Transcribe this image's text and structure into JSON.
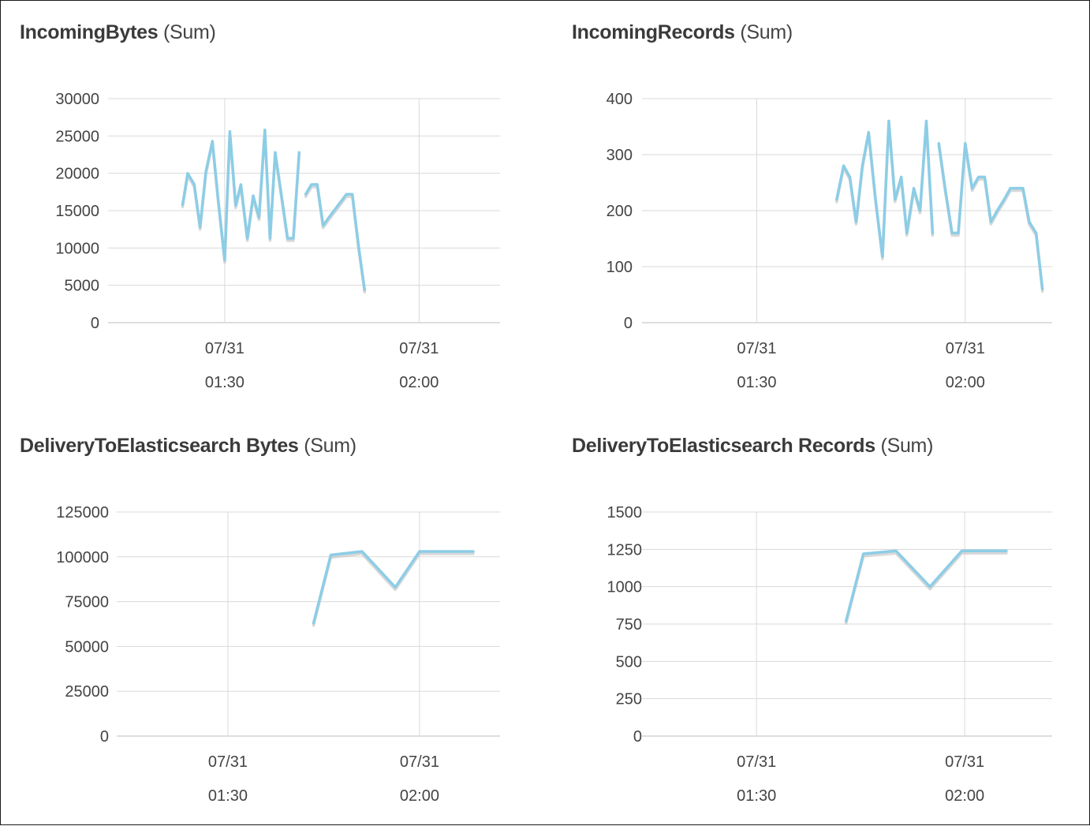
{
  "palette": {
    "line": "#8ccde6",
    "shadow": "#c8c8c8",
    "grid": "#d9d9d9",
    "text": "#444444"
  },
  "chart_data": [
    {
      "type": "line",
      "title": "IncomingBytes",
      "stat": "(Sum)",
      "ylim": [
        0,
        30000
      ],
      "yticks": [
        "0",
        "5000",
        "10000",
        "15000",
        "20000",
        "25000",
        "30000"
      ],
      "xticks": [
        {
          "at": 90,
          "date": "07/31",
          "time": "01:30"
        },
        {
          "at": 120,
          "date": "07/31",
          "time": "02:00"
        }
      ],
      "xlim": [
        72,
        132.5
      ],
      "series": [
        {
          "x": [
            83.5,
            84.3,
            85.3,
            86.2,
            87.1,
            88.1,
            89.0,
            90.0,
            90.8,
            91.7,
            92.5,
            93.5,
            94.4,
            95.3,
            96.2,
            97.0,
            97.8,
            98.8,
            99.7,
            100.6,
            101.5
          ],
          "y": [
            15800,
            20000,
            18500,
            12800,
            20200,
            24300,
            16400,
            8400,
            25600,
            15700,
            18500,
            11300,
            17000,
            14100,
            25800,
            11300,
            22800,
            16800,
            11300,
            11300,
            22800
          ]
        },
        {
          "x": [
            102.5,
            103.4,
            104.3,
            105.2,
            106.1,
            108.8,
            109.7,
            110.7,
            111.6
          ],
          "y": [
            17200,
            18500,
            18500,
            13000,
            14100,
            17200,
            17200,
            10000,
            4400
          ]
        }
      ]
    },
    {
      "type": "line",
      "title": "IncomingRecords",
      "stat": "(Sum)",
      "ylim": [
        0,
        400
      ],
      "yticks": [
        "0",
        "100",
        "200",
        "300",
        "400"
      ],
      "xticks": [
        {
          "at": 90,
          "date": "07/31",
          "time": "01:30"
        },
        {
          "at": 120,
          "date": "07/31",
          "time": "02:00"
        }
      ],
      "xlim": [
        73.5,
        132.5
      ],
      "series": [
        {
          "x": [
            101.5,
            102.5,
            103.4,
            104.3,
            105.2,
            106.1,
            107.1,
            108.1,
            109.0,
            109.9,
            110.8,
            111.6,
            112.6,
            113.5,
            114.4,
            115.3
          ],
          "y": [
            220,
            280,
            260,
            180,
            280,
            340,
            220,
            118,
            360,
            220,
            260,
            160,
            240,
            200,
            360,
            160
          ]
        },
        {
          "x": [
            116.2,
            117.1,
            118.1,
            119.0,
            120.0,
            121.0,
            121.9,
            122.8,
            123.7,
            124.6,
            125.6,
            126.5,
            128.3,
            129.2,
            130.2,
            131.1
          ],
          "y": [
            320,
            240,
            160,
            160,
            320,
            240,
            260,
            260,
            180,
            200,
            220,
            240,
            240,
            180,
            160,
            60
          ]
        }
      ]
    },
    {
      "type": "line",
      "title": "DeliveryToElasticsearch Bytes",
      "stat": "(Sum)",
      "ylim": [
        0,
        125000
      ],
      "yticks": [
        "0",
        "25000",
        "50000",
        "75000",
        "100000",
        "125000"
      ],
      "xticks": [
        {
          "at": 90,
          "date": "07/31",
          "time": "01:30"
        },
        {
          "at": 120,
          "date": "07/31",
          "time": "02:00"
        }
      ],
      "xlim": [
        72.6,
        132.6
      ],
      "series": [
        {
          "x": [
            103.4,
            106.1,
            111.0,
            116.2,
            120.0,
            123.6,
            128.4
          ],
          "y": [
            63000,
            101000,
            103000,
            83000,
            103000,
            103000,
            103000
          ]
        }
      ]
    },
    {
      "type": "line",
      "title": "DeliveryToElasticsearch Records",
      "stat": "(Sum)",
      "ylim": [
        0,
        1500
      ],
      "yticks": [
        "0",
        "250",
        "500",
        "750",
        "1000",
        "1250",
        "1500"
      ],
      "xticks": [
        {
          "at": 90,
          "date": "07/31",
          "time": "01:30"
        },
        {
          "at": 120,
          "date": "07/31",
          "time": "02:00"
        }
      ],
      "xlim": [
        73.5,
        132.6
      ],
      "series": [
        {
          "x": [
            102.9,
            105.4,
            110.1,
            115.0,
            119.6,
            122.6,
            126.0
          ],
          "y": [
            770,
            1220,
            1240,
            1000,
            1240,
            1240,
            1240
          ]
        }
      ]
    }
  ]
}
